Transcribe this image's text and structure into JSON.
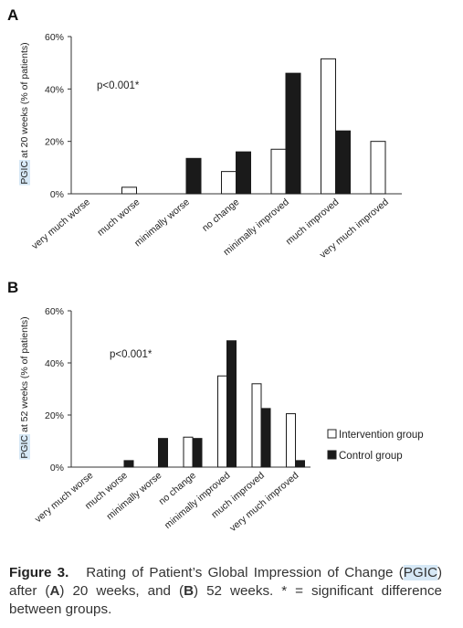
{
  "chart_data": [
    {
      "panel": "A",
      "type": "bar",
      "ylabel": "PGIC at 20 weeks (% of patients)",
      "ylabel_highlight": "PGIC",
      "ylim": [
        0,
        60
      ],
      "yticks": [
        "0%",
        "20%",
        "40%",
        "60%"
      ],
      "annotation": "p<0.001*",
      "categories": [
        "very much worse",
        "much worse",
        "minimally worse",
        "no change",
        "minimally improved",
        "much improved",
        "very much improved"
      ],
      "series": [
        {
          "name": "Intervention group",
          "color": "#ffffff",
          "values": [
            0,
            2.5,
            0,
            8.5,
            17,
            51.5,
            20
          ]
        },
        {
          "name": "Control group",
          "color": "#1a1a1a",
          "values": [
            0,
            0,
            13.5,
            16,
            46,
            24,
            0
          ]
        }
      ]
    },
    {
      "panel": "B",
      "type": "bar",
      "ylabel": "PGIC at 52 weeks (% of patients)",
      "ylabel_highlight": "PGIC",
      "ylim": [
        0,
        60
      ],
      "yticks": [
        "0%",
        "20%",
        "40%",
        "60%"
      ],
      "annotation": "p<0.001*",
      "categories": [
        "very much worse",
        "much worse",
        "minimally worse",
        "no change",
        "minimally improved",
        "much improved",
        "very much improved"
      ],
      "series": [
        {
          "name": "Intervention group",
          "color": "#ffffff",
          "values": [
            0,
            0,
            0,
            11.5,
            35,
            32,
            20.5
          ]
        },
        {
          "name": "Control group",
          "color": "#1a1a1a",
          "values": [
            0,
            2.5,
            11,
            11,
            48.5,
            22.5,
            2.5
          ]
        }
      ]
    }
  ],
  "legend": {
    "intervention": "Intervention group",
    "control": "Control group"
  },
  "caption": {
    "label": "Figure 3.",
    "text_1": "Rating of Patient’s Global Impression of Change (",
    "highlight": "PGIC",
    "text_2": ") after (",
    "a": "A",
    "text_3": ") 20 weeks, and (",
    "b": "B",
    "text_4": ") 52 weeks. * = significant difference between groups."
  }
}
